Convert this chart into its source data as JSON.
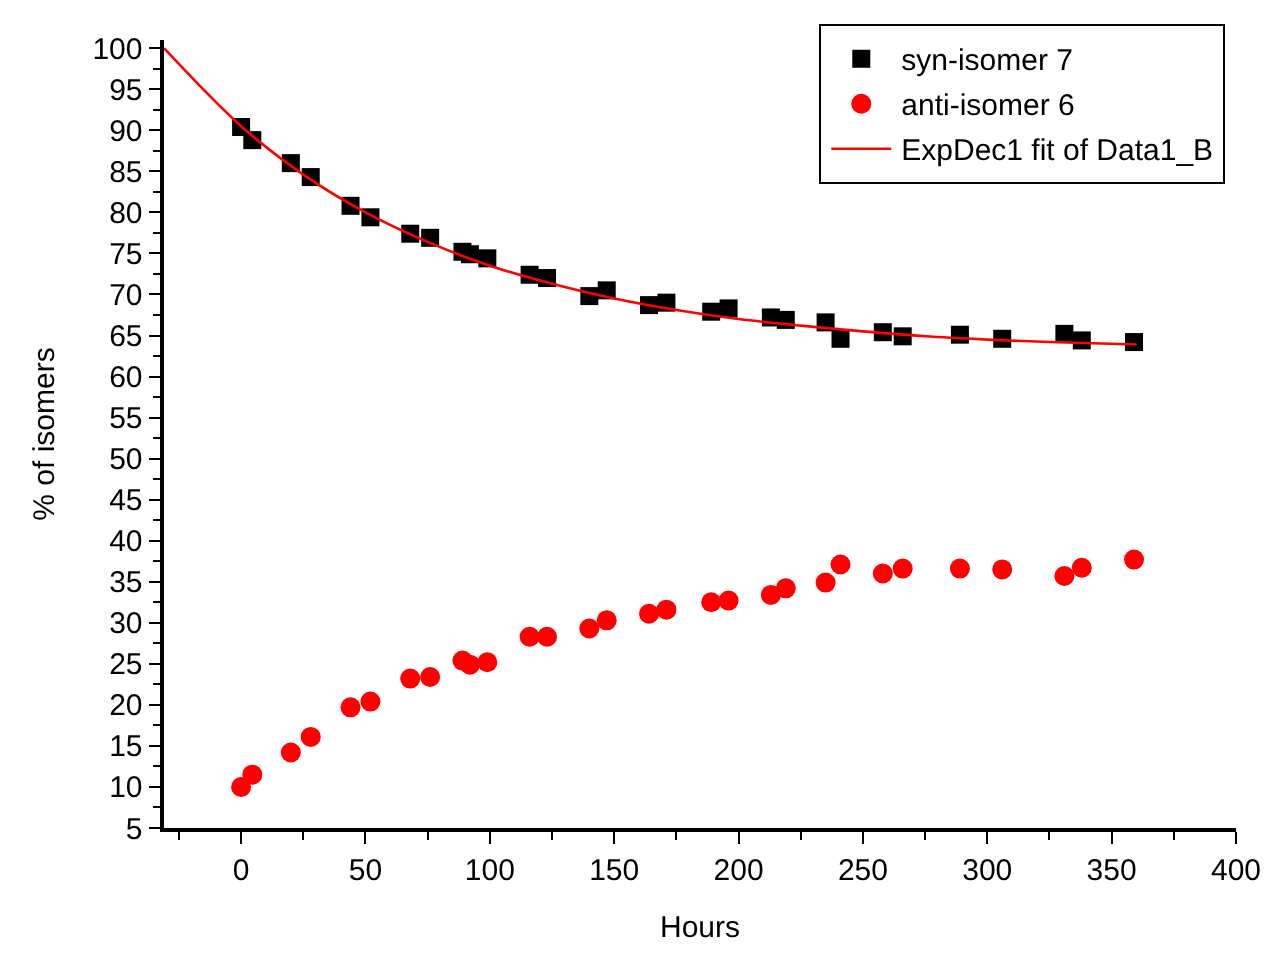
{
  "chart_data": {
    "type": "scatter",
    "xlabel": "Hours",
    "ylabel": "% of isomers",
    "xlim": [
      -31,
      400
    ],
    "xticks": [
      0,
      50,
      100,
      150,
      200,
      250,
      300,
      350,
      400
    ],
    "ylim": [
      5,
      101
    ],
    "yticks": [
      5,
      10,
      15,
      20,
      25,
      30,
      35,
      40,
      45,
      50,
      55,
      60,
      65,
      70,
      75,
      80,
      85,
      90,
      95,
      100
    ],
    "legend": "top right",
    "x": [
      0,
      4.5,
      20,
      28,
      44,
      52,
      68,
      76,
      89,
      92,
      99,
      116,
      123,
      140,
      147,
      164,
      171,
      189,
      196,
      213,
      219,
      235,
      241,
      258,
      266,
      289,
      306,
      331,
      338,
      359
    ],
    "series": [
      {
        "name": "syn-isomer 7",
        "color": "#000000",
        "marker": "square",
        "values": [
          90.4,
          88.8,
          86.0,
          84.3,
          80.8,
          79.4,
          77.4,
          76.9,
          75.2,
          74.9,
          74.4,
          72.4,
          72.0,
          69.8,
          70.5,
          68.7,
          69.0,
          67.9,
          68.3,
          67.2,
          66.9,
          66.6,
          64.6,
          65.4,
          64.9,
          65.1,
          64.6,
          65.2,
          64.4,
          64.2
        ]
      },
      {
        "name": "anti-isomer 6",
        "color": "#ff0000",
        "marker": "circle",
        "values": [
          10.0,
          11.5,
          14.2,
          16.1,
          19.7,
          20.4,
          23.2,
          23.4,
          25.4,
          24.9,
          25.2,
          28.3,
          28.3,
          29.3,
          30.3,
          31.1,
          31.6,
          32.5,
          32.7,
          33.4,
          34.2,
          34.9,
          37.1,
          36.0,
          36.6,
          36.6,
          36.5,
          35.7,
          36.7,
          37.7
        ]
      },
      {
        "name": "ExpDec1 fit of Data1_B",
        "type": "line",
        "color": "#ff0000",
        "marker": "none",
        "line_style": "solid",
        "x": [
          -31,
          0,
          25,
          50,
          75,
          100,
          125,
          150,
          175,
          200,
          225,
          250,
          275,
          300,
          325,
          360
        ],
        "values": [
          100.0,
          90.5,
          84.6,
          80.0,
          76.4,
          73.5,
          71.3,
          69.5,
          68.1,
          67.0,
          66.2,
          65.5,
          64.9,
          64.5,
          64.2,
          63.9
        ]
      }
    ]
  }
}
